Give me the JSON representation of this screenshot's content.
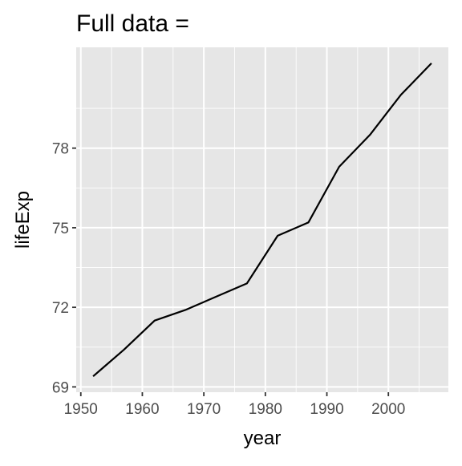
{
  "chart_data": {
    "type": "line",
    "title": "Full data =",
    "xlabel": "year",
    "ylabel": "lifeExp",
    "x": [
      1952,
      1957,
      1962,
      1967,
      1972,
      1977,
      1982,
      1987,
      1992,
      1997,
      2002,
      2007
    ],
    "series": [
      {
        "values": [
          69.4,
          70.4,
          71.5,
          71.9,
          72.4,
          72.9,
          74.7,
          75.2,
          77.3,
          78.5,
          80.0,
          81.2
        ]
      }
    ],
    "xlim": [
      1949.25,
      2009.75
    ],
    "ylim": [
      68.8,
      81.8
    ],
    "x_ticks": [
      1950,
      1960,
      1970,
      1980,
      1990,
      2000
    ],
    "x_tick_labels": [
      "1950",
      "1960",
      "1970",
      "1980",
      "1990",
      "2000"
    ],
    "y_ticks": [
      69,
      72,
      75,
      78
    ],
    "y_tick_labels": [
      "69",
      "72",
      "75",
      "78"
    ],
    "grid": true,
    "panel_background": "#e6e6e6",
    "grid_color": "#ffffff",
    "line_color": "#000000",
    "text_color": "#000000",
    "tick_label_color": "#4d4d4d",
    "tick_color": "#333333"
  }
}
